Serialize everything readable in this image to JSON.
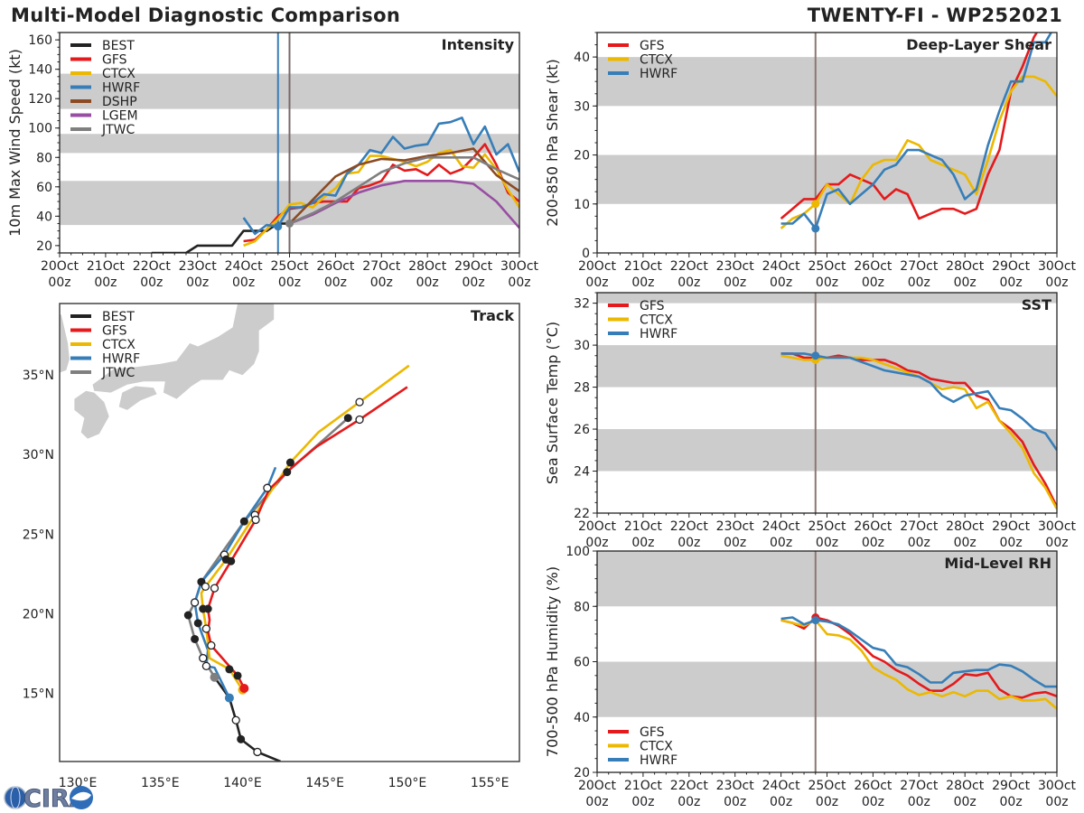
{
  "header": {
    "title": "Multi-Model Diagnostic Comparison",
    "storm": "TWENTY-FI - WP252021"
  },
  "logo": {
    "text": "CIRA"
  },
  "colors": {
    "BEST": "#222222",
    "GFS": "#e41a1c",
    "CTCX": "#ecb800",
    "HWRF": "#377eb8",
    "DSHP": "#8c4a22",
    "LGEM": "#984ea3",
    "JTWC": "#7f7f7f",
    "band": "#cccccc",
    "land": "#cccccc",
    "vline": "#8c7770"
  },
  "chart_data": [
    {
      "id": "intensity",
      "type": "line",
      "title": "Intensity",
      "ylabel": "10m Max Wind Speed (kt)",
      "xticks": [
        "20Oct",
        "21Oct",
        "22Oct",
        "23Oct",
        "24Oct",
        "25Oct",
        "26Oct",
        "27Oct",
        "28Oct",
        "29Oct",
        "30Oct"
      ],
      "xtick_sub": "00z",
      "ylim": [
        15,
        165
      ],
      "yticks": [
        20,
        40,
        60,
        80,
        100,
        120,
        140,
        160
      ],
      "bands": [
        [
          34,
          64
        ],
        [
          83,
          96
        ],
        [
          113,
          137
        ]
      ],
      "vlines": [
        {
          "x": "24Oct 18z",
          "color": "#377eb8"
        },
        {
          "x": "25Oct 00z",
          "color": "#7a6868"
        }
      ],
      "times": [
        "24Oct 00z",
        "24Oct 06z",
        "24Oct 12z",
        "24Oct 18z",
        "25Oct 00z",
        "25Oct 06z",
        "25Oct 12z",
        "25Oct 18z",
        "26Oct 00z",
        "26Oct 06z",
        "26Oct 12z",
        "26Oct 18z",
        "27Oct 00z",
        "27Oct 06z",
        "27Oct 12z",
        "27Oct 18z",
        "28Oct 00z",
        "28Oct 06z",
        "28Oct 12z",
        "28Oct 18z",
        "29Oct 00z",
        "29Oct 06z",
        "29Oct 12z",
        "29Oct 18z",
        "30Oct 00z"
      ],
      "legend": [
        "BEST",
        "GFS",
        "CTCX",
        "HWRF",
        "DSHP",
        "LGEM",
        "JTWC"
      ],
      "series": [
        {
          "name": "BEST",
          "x": [
            "22Oct 00z",
            "22Oct 06z",
            "22Oct 12z",
            "22Oct 18z",
            "23Oct 00z",
            "23Oct 06z",
            "23Oct 12z",
            "23Oct 18z",
            "24Oct 00z",
            "24Oct 06z",
            "24Oct 12z",
            "24Oct 18z",
            "25Oct 00z"
          ],
          "values": [
            15,
            15,
            15,
            15,
            20,
            20,
            20,
            20,
            30,
            30,
            30,
            35,
            35
          ]
        },
        {
          "name": "GFS",
          "values": [
            23,
            24,
            31,
            40,
            45,
            46,
            49,
            50,
            50,
            50,
            59,
            61,
            64,
            75,
            71,
            72,
            68,
            75,
            69,
            72,
            80,
            89,
            75,
            56,
            50
          ]
        },
        {
          "name": "CTCX",
          "values": [
            20,
            23,
            31,
            38,
            48,
            49,
            46,
            53,
            59,
            69,
            70,
            81,
            81,
            79,
            77,
            74,
            77,
            83,
            85,
            74,
            73,
            82,
            72,
            58,
            46
          ]
        },
        {
          "name": "HWRF",
          "values": [
            39,
            28,
            34,
            33,
            46,
            46,
            49,
            55,
            54,
            69,
            75,
            85,
            83,
            94,
            86,
            88,
            89,
            103,
            104,
            107,
            89,
            101,
            82,
            89,
            70
          ],
          "dot": "24Oct 18z"
        },
        {
          "name": "DSHP",
          "x": [
            "25Oct 00z",
            "25Oct 12z",
            "26Oct 00z",
            "26Oct 12z",
            "27Oct 00z",
            "27Oct 12z",
            "28Oct 00z",
            "28Oct 12z",
            "29Oct 00z",
            "29Oct 12z",
            "30Oct 00z"
          ],
          "values": [
            35,
            51,
            67,
            75,
            79,
            78,
            81,
            83,
            86,
            68,
            57
          ]
        },
        {
          "name": "LGEM",
          "x": [
            "25Oct 00z",
            "25Oct 12z",
            "26Oct 00z",
            "26Oct 12z",
            "27Oct 00z",
            "27Oct 12z",
            "28Oct 00z",
            "28Oct 12z",
            "29Oct 00z",
            "29Oct 12z",
            "30Oct 00z"
          ],
          "values": [
            35,
            41,
            49,
            56,
            61,
            64,
            64,
            64,
            62,
            50,
            32
          ]
        },
        {
          "name": "JTWC",
          "x": [
            "25Oct 00z",
            "25Oct 12z",
            "26Oct 00z",
            "26Oct 12z",
            "27Oct 00z",
            "27Oct 12z",
            "28Oct 00z",
            "28Oct 12z",
            "29Oct 00z",
            "29Oct 12z",
            "30Oct 00z"
          ],
          "values": [
            35,
            42,
            50,
            60,
            70,
            76,
            80,
            80,
            80,
            72,
            65
          ],
          "dot": "25Oct 00z"
        }
      ]
    },
    {
      "id": "shear",
      "type": "line",
      "title": "Deep-Layer Shear",
      "ylabel": "200-850 hPa Shear (kt)",
      "xticks": [
        "20Oct",
        "21Oct",
        "22Oct",
        "23Oct",
        "24Oct",
        "25Oct",
        "26Oct",
        "27Oct",
        "28Oct",
        "29Oct",
        "30Oct"
      ],
      "xtick_sub": "00z",
      "ylim": [
        0,
        45
      ],
      "yticks": [
        0,
        10,
        20,
        30,
        40
      ],
      "bands": [
        [
          10,
          20
        ],
        [
          30,
          40
        ]
      ],
      "vlines": [
        {
          "x": "24Oct 18z",
          "color": "#8c7770"
        }
      ],
      "legend": [
        "GFS",
        "CTCX",
        "HWRF"
      ],
      "series": [
        {
          "name": "GFS",
          "values": [
            7,
            9,
            11,
            11,
            14,
            14,
            16,
            15,
            14,
            11,
            13,
            12,
            7,
            8,
            9,
            9,
            8,
            9,
            16,
            21,
            33,
            38,
            44,
            48,
            50
          ]
        },
        {
          "name": "CTCX",
          "values": [
            5,
            7,
            8,
            10,
            14,
            12,
            10,
            15,
            18,
            19,
            19,
            23,
            22,
            19,
            18,
            17,
            16,
            12,
            19,
            27,
            33,
            36,
            36,
            35,
            32
          ],
          "dot": "24Oct 18z"
        },
        {
          "name": "HWRF",
          "values": [
            6,
            6,
            8,
            5,
            12,
            13,
            10,
            12,
            14,
            17,
            18,
            21,
            21,
            20,
            19,
            16,
            11,
            13,
            22,
            29,
            35,
            35,
            43,
            43,
            47
          ],
          "dot": "24Oct 18z"
        }
      ]
    },
    {
      "id": "sst",
      "type": "line",
      "title": "SST",
      "ylabel": "Sea Surface Temp (°C)",
      "xticks": [
        "20Oct",
        "21Oct",
        "22Oct",
        "23Oct",
        "24Oct",
        "25Oct",
        "26Oct",
        "27Oct",
        "28Oct",
        "29Oct",
        "30Oct"
      ],
      "xtick_sub": "00z",
      "ylim": [
        22,
        32.5
      ],
      "yticks": [
        22,
        24,
        26,
        28,
        30,
        32
      ],
      "bands": [
        [
          24,
          26
        ],
        [
          28,
          30
        ],
        [
          32,
          33
        ]
      ],
      "vlines": [
        {
          "x": "24Oct 18z",
          "color": "#8c7770"
        }
      ],
      "legend": [
        "GFS",
        "CTCX",
        "HWRF"
      ],
      "series": [
        {
          "name": "GFS",
          "values": [
            29.6,
            29.6,
            29.4,
            29.4,
            29.4,
            29.5,
            29.4,
            29.3,
            29.3,
            29.3,
            29.1,
            28.8,
            28.7,
            28.4,
            28.3,
            28.2,
            28.2,
            27.6,
            27.4,
            26.4,
            26.0,
            25.4,
            24.3,
            23.4,
            22.3
          ]
        },
        {
          "name": "CTCX",
          "values": [
            29.5,
            29.4,
            29.3,
            29.3,
            29.4,
            29.4,
            29.4,
            29.4,
            29.3,
            29.1,
            28.9,
            28.7,
            28.5,
            28.2,
            27.9,
            28.0,
            27.9,
            27.0,
            27.3,
            26.4,
            25.8,
            25.1,
            23.9,
            23.2,
            22.2
          ],
          "dot": "24Oct 18z"
        },
        {
          "name": "HWRF",
          "values": [
            29.6,
            29.6,
            29.6,
            29.5,
            29.4,
            29.4,
            29.4,
            29.2,
            29.0,
            28.8,
            28.7,
            28.6,
            28.5,
            28.2,
            27.6,
            27.3,
            27.6,
            27.7,
            27.8,
            27.0,
            26.9,
            26.5,
            26.0,
            25.8,
            25.0
          ],
          "dot": "24Oct 18z"
        }
      ]
    },
    {
      "id": "rh",
      "type": "line",
      "title": "Mid-Level RH",
      "ylabel": "700-500 hPa Humidity (%)",
      "xticks": [
        "20Oct",
        "21Oct",
        "22Oct",
        "23Oct",
        "24Oct",
        "25Oct",
        "26Oct",
        "27Oct",
        "28Oct",
        "29Oct",
        "30Oct"
      ],
      "xtick_sub": "00z",
      "ylim": [
        20,
        100
      ],
      "yticks": [
        20,
        40,
        60,
        80,
        100
      ],
      "bands": [
        [
          40,
          60
        ],
        [
          80,
          100
        ]
      ],
      "vlines": [
        {
          "x": "24Oct 18z",
          "color": "#8c7770"
        }
      ],
      "legend": [
        "GFS",
        "CTCX",
        "HWRF"
      ],
      "series": [
        {
          "name": "GFS",
          "values": [
            75,
            74,
            72,
            76,
            75,
            73,
            70,
            66,
            62,
            60,
            57,
            55,
            52,
            49.5,
            49.5,
            52,
            55.5,
            55,
            56,
            50,
            47.5,
            47,
            48.5,
            49,
            47.5
          ],
          "dot": "24Oct 18z"
        },
        {
          "name": "CTCX",
          "values": [
            75,
            74,
            73,
            75,
            70,
            69.5,
            68,
            64,
            58,
            55.5,
            53.5,
            50,
            48,
            49,
            47.5,
            49,
            47.5,
            49.5,
            49.5,
            46.5,
            47.5,
            46,
            46,
            46.5,
            43
          ]
        },
        {
          "name": "HWRF",
          "values": [
            75.5,
            76,
            73.5,
            75,
            74.5,
            73.5,
            71,
            68,
            65,
            64,
            59,
            58,
            55.5,
            52.5,
            52.5,
            56,
            56.5,
            57,
            57,
            59,
            58.5,
            56.5,
            53.5,
            51,
            51
          ],
          "dot": "24Oct 18z"
        }
      ]
    },
    {
      "id": "track",
      "type": "scatter",
      "title": "Track",
      "lon_range": [
        128.9,
        156.8
      ],
      "lat_range": [
        10.7,
        39.5
      ],
      "lon_ticks": [
        130,
        135,
        140,
        145,
        150,
        155
      ],
      "lon_labels": [
        "130°E",
        "135°E",
        "140°E",
        "145°E",
        "150°E",
        "155°E"
      ],
      "lat_ticks": [
        15,
        20,
        25,
        30,
        35
      ],
      "lat_labels": [
        "15°N",
        "20°N",
        "25°N",
        "30°N",
        "35°N"
      ],
      "legend": [
        "BEST",
        "GFS",
        "CTCX",
        "HWRF",
        "JTWC"
      ],
      "tracks": [
        {
          "name": "BEST",
          "points": [
            [
              142.3,
              10.7,
              ""
            ],
            [
              140.9,
              11.3,
              "o"
            ],
            [
              139.9,
              12.1,
              "f"
            ],
            [
              139.6,
              13.3,
              "o"
            ],
            [
              139.2,
              14.7,
              ""
            ],
            [
              138.3,
              16.0,
              ""
            ]
          ]
        },
        {
          "name": "JTWC",
          "points": [
            [
              138.3,
              16.0,
              "s"
            ],
            [
              137.6,
              17.2,
              "o"
            ],
            [
              137.1,
              18.4,
              "f"
            ],
            [
              136.7,
              19.9,
              "f"
            ],
            [
              137.1,
              20.7,
              ""
            ],
            [
              137.5,
              22.0,
              "f"
            ],
            [
              140.1,
              25.8,
              "f"
            ],
            [
              142.7,
              28.9,
              "f"
            ],
            [
              146.4,
              32.3,
              "f"
            ]
          ]
        },
        {
          "name": "HWRF",
          "points": [
            [
              139.2,
              14.7,
              "s"
            ],
            [
              138.3,
              16.6,
              ""
            ],
            [
              137.8,
              16.7,
              "o"
            ],
            [
              137.9,
              17.7,
              ""
            ],
            [
              137.3,
              19.4,
              "f"
            ],
            [
              137.1,
              20.7,
              "o"
            ],
            [
              137.5,
              22.0,
              ""
            ],
            [
              138.9,
              23.7,
              "o"
            ],
            [
              140.1,
              25.8,
              ""
            ],
            [
              141.5,
              27.9,
              "o"
            ],
            [
              142.0,
              29.2,
              ""
            ]
          ]
        },
        {
          "name": "CTCX",
          "points": [
            [
              140.0,
              15.2,
              "s"
            ],
            [
              139.2,
              16.5,
              "f"
            ],
            [
              138.0,
              17.2,
              ""
            ],
            [
              137.8,
              19.05,
              "o"
            ],
            [
              137.6,
              20.3,
              "f"
            ],
            [
              137.5,
              21.3,
              ""
            ],
            [
              137.75,
              21.7,
              "o"
            ],
            [
              139.0,
              23.4,
              "f"
            ],
            [
              140.75,
              26.2,
              "o"
            ],
            [
              142.9,
              29.5,
              "f"
            ],
            [
              144.6,
              31.4,
              ""
            ],
            [
              147.1,
              33.3,
              "o"
            ],
            [
              150.1,
              35.6,
              ""
            ]
          ]
        },
        {
          "name": "GFS",
          "points": [
            [
              140.1,
              15.3,
              "s"
            ],
            [
              139.7,
              16.1,
              "f"
            ],
            [
              138.1,
              18.0,
              "o"
            ],
            [
              137.9,
              18.9,
              ""
            ],
            [
              138.0,
              19.6,
              ""
            ],
            [
              137.9,
              20.3,
              "f"
            ],
            [
              138.3,
              21.6,
              "o"
            ],
            [
              139.3,
              23.3,
              "f"
            ],
            [
              140.8,
              25.9,
              "o"
            ],
            [
              141.6,
              27.8,
              ""
            ],
            [
              143.0,
              29.2,
              ""
            ],
            [
              144.5,
              30.5,
              ""
            ],
            [
              147.1,
              32.2,
              "o"
            ],
            [
              150.0,
              34.25,
              ""
            ]
          ]
        }
      ]
    }
  ]
}
